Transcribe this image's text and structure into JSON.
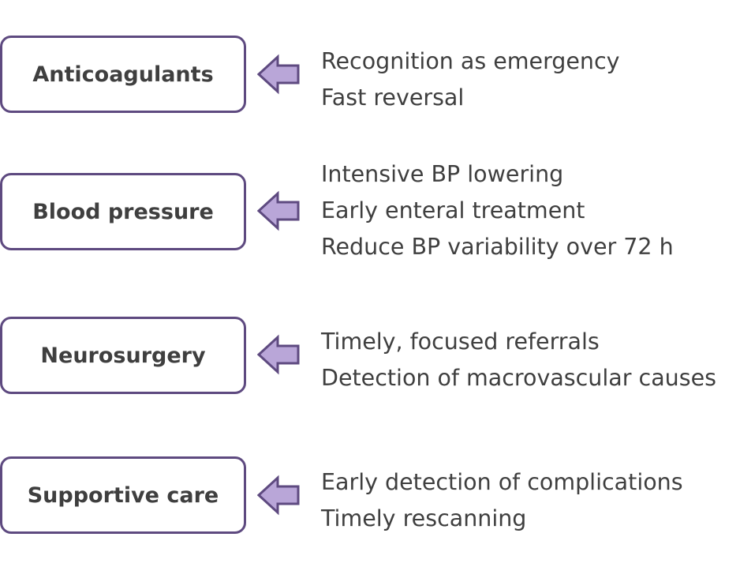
{
  "diagram": {
    "rows": [
      {
        "label": "Anticoagulants",
        "items": [
          "Recognition as emergency",
          "Fast reversal"
        ]
      },
      {
        "label": "Blood pressure",
        "items": [
          "Intensive BP lowering",
          "Early enteral treatment",
          "Reduce BP variability over 72 h"
        ]
      },
      {
        "label": "Neurosurgery",
        "items": [
          "Timely, focused referrals",
          "Detection of macrovascular causes"
        ]
      },
      {
        "label": "Supportive care",
        "items": [
          "Early detection of complications",
          "Timely rescanning"
        ]
      }
    ],
    "colors": {
      "box_border": "#5e4a80",
      "arrow_fill": "#b9a6d8",
      "arrow_stroke": "#5e4a80",
      "text": "#3f3f3f"
    },
    "icon": "left-arrow-icon"
  }
}
